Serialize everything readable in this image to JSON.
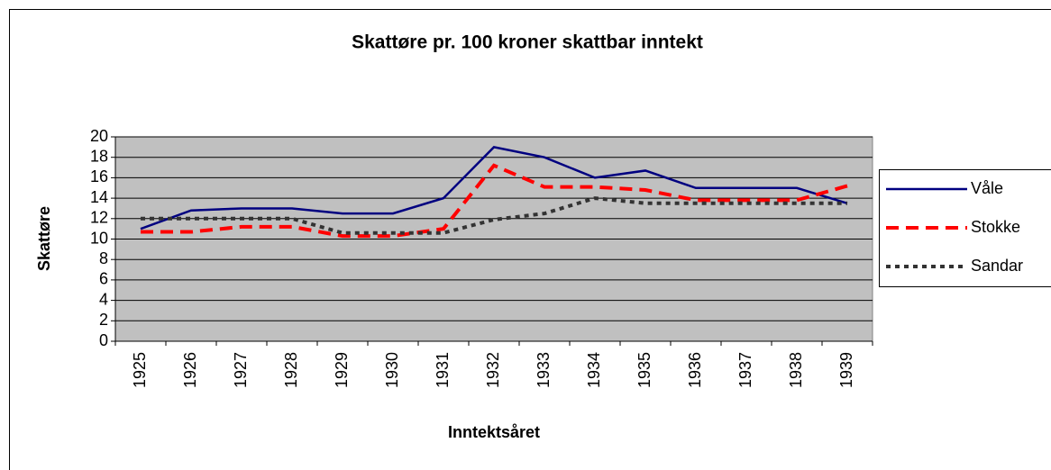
{
  "chart_data": {
    "type": "line",
    "title": "Skattøre pr. 100 kroner skattbar inntekt",
    "x_label": "Inntektsåret",
    "y_label": "Skattøre",
    "categories": [
      "1925",
      "1926",
      "1927",
      "1928",
      "1929",
      "1930",
      "1931",
      "1932",
      "1933",
      "1934",
      "1935",
      "1936",
      "1937",
      "1938",
      "1939"
    ],
    "series": [
      {
        "name": "Våle",
        "color": "#000080",
        "dash": "solid",
        "values": [
          11,
          12.8,
          13,
          13,
          12.5,
          12.5,
          14,
          19,
          18,
          16,
          16.7,
          15,
          15,
          15,
          13.5
        ]
      },
      {
        "name": "Stokke",
        "color": "#ff0000",
        "dash": "dashed",
        "values": [
          10.7,
          10.7,
          11.2,
          11.2,
          10.3,
          10.3,
          11,
          17.2,
          15.1,
          15.1,
          14.8,
          13.8,
          13.8,
          13.8,
          15.2
        ]
      },
      {
        "name": "Sandar",
        "color": "#333333",
        "dash": "dotted",
        "values": [
          12,
          12,
          12,
          12,
          10.6,
          10.6,
          10.6,
          11.9,
          12.5,
          14,
          13.5,
          13.5,
          13.5,
          13.5,
          13.5
        ]
      }
    ],
    "ylim": [
      0,
      20
    ],
    "yticks": [
      0,
      2,
      4,
      6,
      8,
      10,
      12,
      14,
      16,
      18,
      20
    ],
    "grid": true,
    "legend": "right",
    "plot_background": "#c0c0c0"
  }
}
